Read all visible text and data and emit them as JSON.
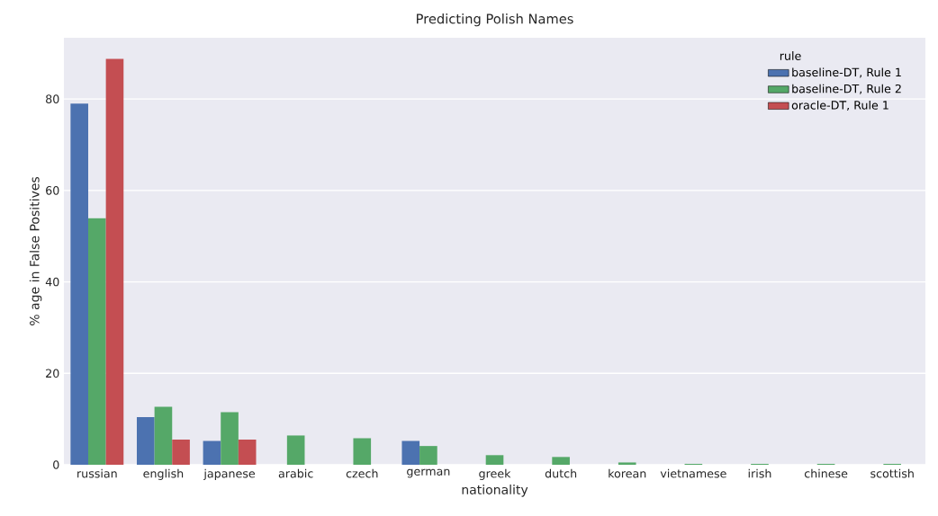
{
  "chart_data": {
    "type": "bar",
    "title": "Predicting Polish Names",
    "xlabel": "nationality",
    "ylabel": "% age in False Positives",
    "legend_title": "rule",
    "categories": [
      "russian",
      "english",
      "japanese",
      "arabic",
      "czech",
      "german",
      "greek",
      "dutch",
      "korean",
      "vietnamese",
      "irish",
      "chinese",
      "scottish"
    ],
    "series": [
      {
        "name": "baseline-DT, Rule 1",
        "color": "#4c72b0",
        "values": [
          79.0,
          10.4,
          5.2,
          null,
          null,
          5.2,
          null,
          null,
          null,
          null,
          null,
          null,
          null
        ]
      },
      {
        "name": "baseline-DT, Rule 2",
        "color": "#55a868",
        "values": [
          53.9,
          12.7,
          11.5,
          6.4,
          5.8,
          4.1,
          2.1,
          1.7,
          0.5,
          0.2,
          0.2,
          0.2,
          0.2
        ]
      },
      {
        "name": "oracle-DT, Rule 1",
        "color": "#c44e52",
        "values": [
          88.8,
          5.5,
          5.5,
          null,
          null,
          null,
          null,
          null,
          null,
          null,
          null,
          null,
          null
        ]
      }
    ],
    "ylim": [
      0,
      93.4
    ],
    "yticks": [
      0,
      20,
      40,
      60,
      80
    ],
    "grid": "y",
    "legend": "top right"
  }
}
